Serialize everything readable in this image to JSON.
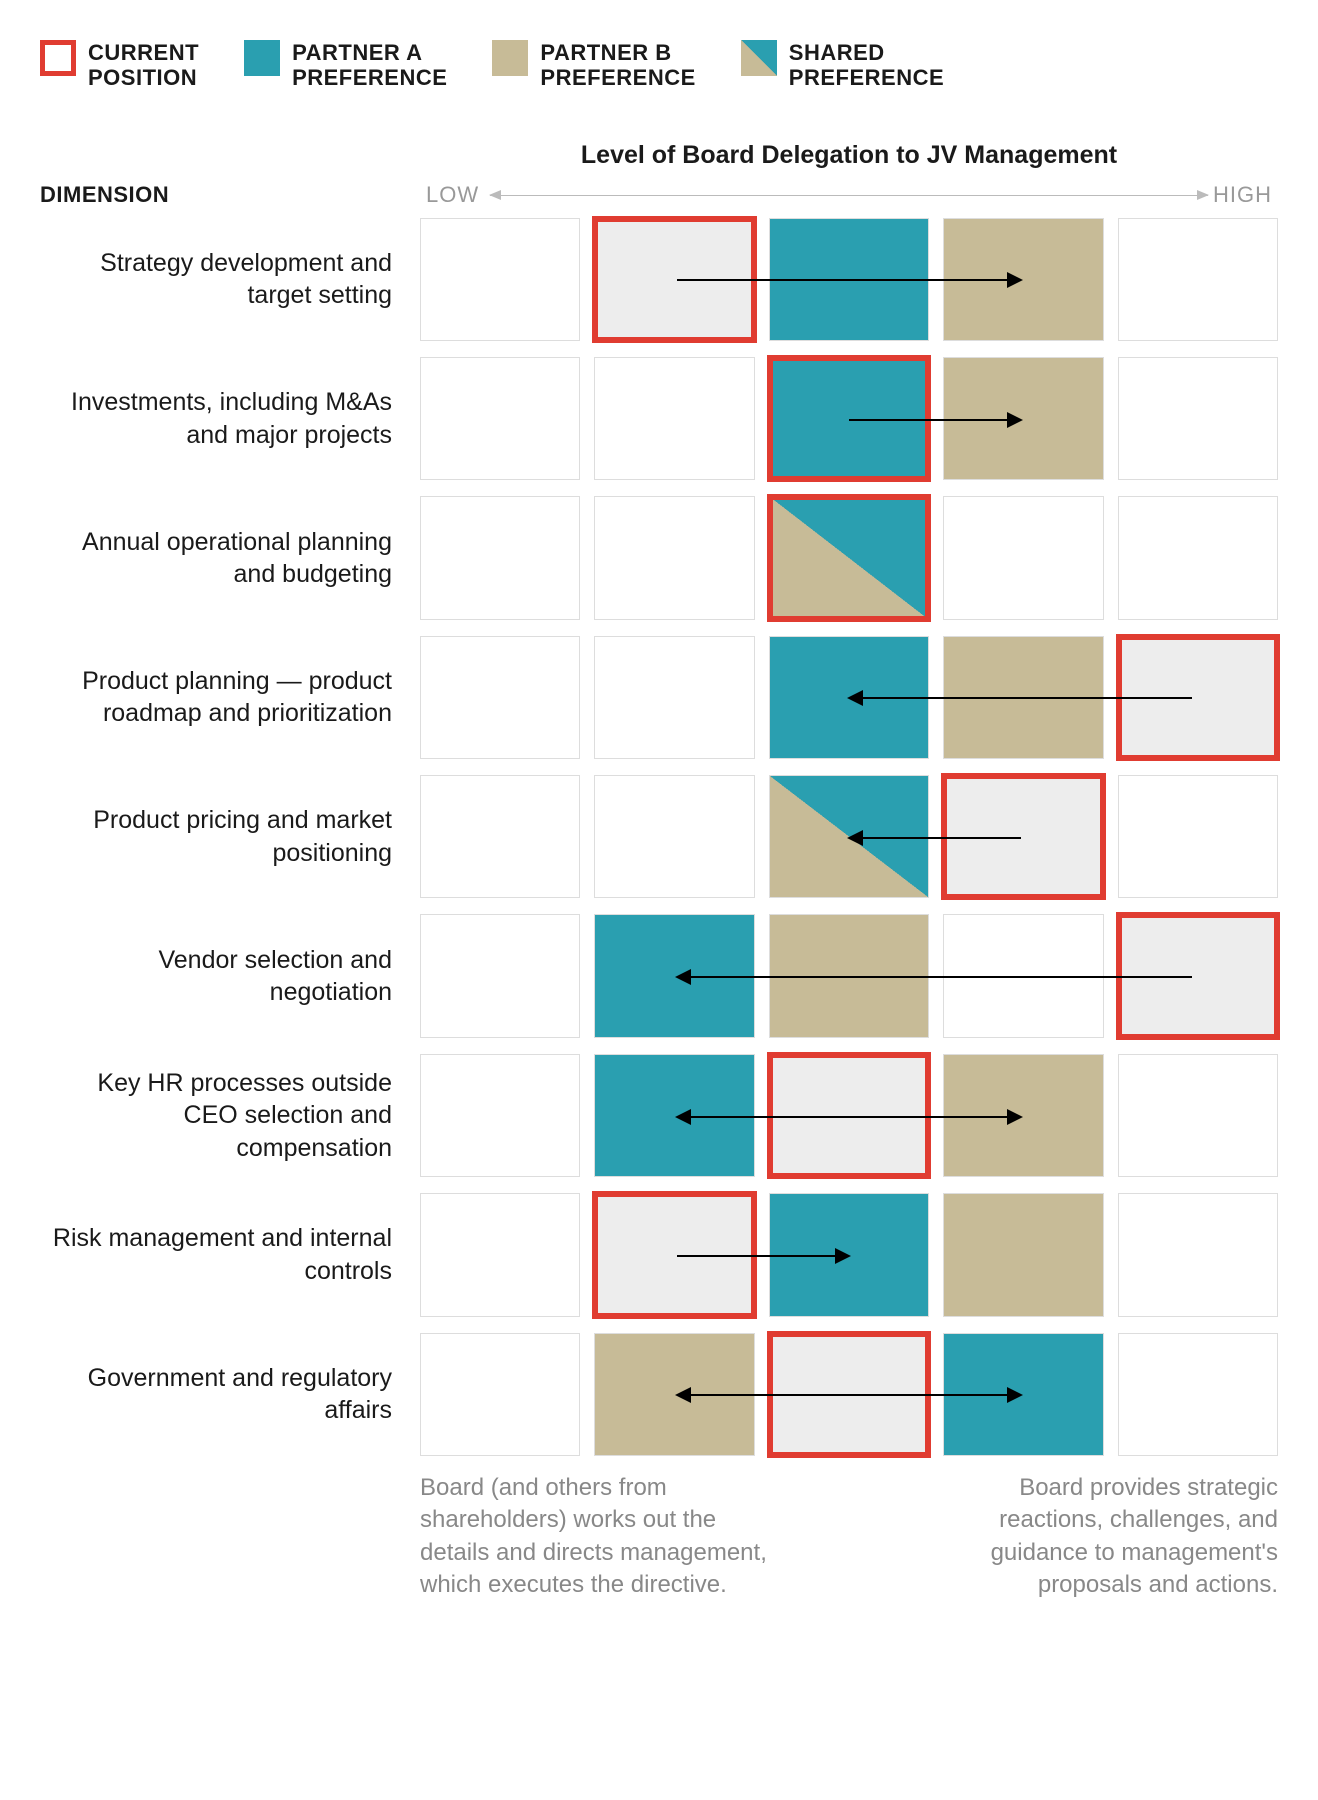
{
  "colors": {
    "current_outline": "#e03c31",
    "partner_a": "#2a9fb0",
    "partner_b": "#c7bb97",
    "empty_cell": "#ffffff",
    "current_fill": "#ededed",
    "grid_border": "#dddddd",
    "text": "#1a1a1a",
    "muted": "#999999",
    "arrow": "#000000"
  },
  "legend": [
    {
      "key": "current",
      "label": "CURRENT\nPOSITION"
    },
    {
      "key": "partner_a",
      "label": "PARTNER A\nPREFERENCE"
    },
    {
      "key": "partner_b",
      "label": "PARTNER B\nPREFERENCE"
    },
    {
      "key": "shared",
      "label": "SHARED\nPREFERENCE"
    }
  ],
  "axis": {
    "title": "Level of Board Delegation to JV Management",
    "low": "LOW",
    "high": "HIGH",
    "dimension_header": "DIMENSION"
  },
  "columns": 5,
  "rows": [
    {
      "label": "Strategy development and target setting",
      "cells": [
        "empty",
        "current",
        "partner_a",
        "partner_b",
        "empty"
      ],
      "arrows": [
        {
          "from": 1,
          "to": 3,
          "heads": [
            "right"
          ]
        }
      ]
    },
    {
      "label": "Investments, including M&As and major projects",
      "cells": [
        "empty",
        "empty",
        "current_partner_a",
        "partner_b",
        "empty"
      ],
      "arrows": [
        {
          "from": 2,
          "to": 3,
          "heads": [
            "right"
          ]
        }
      ]
    },
    {
      "label": "Annual operational planning and budgeting",
      "cells": [
        "empty",
        "empty",
        "current_shared",
        "empty",
        "empty"
      ],
      "arrows": []
    },
    {
      "label": "Product planning — product roadmap and prioritization",
      "cells": [
        "empty",
        "empty",
        "partner_a",
        "partner_b",
        "current"
      ],
      "arrows": [
        {
          "from": 4,
          "to": 2,
          "heads": [
            "left"
          ]
        }
      ]
    },
    {
      "label": "Product pricing and market positioning",
      "cells": [
        "empty",
        "empty",
        "shared",
        "current",
        "empty"
      ],
      "arrows": [
        {
          "from": 3,
          "to": 2,
          "heads": [
            "left"
          ]
        }
      ]
    },
    {
      "label": "Vendor selection and negotiation",
      "cells": [
        "empty",
        "partner_a",
        "partner_b",
        "empty",
        "current"
      ],
      "arrows": [
        {
          "from": 4,
          "to": 1,
          "heads": [
            "left"
          ]
        }
      ]
    },
    {
      "label": "Key HR processes outside CEO selection and compensation",
      "cells": [
        "empty",
        "partner_a",
        "current",
        "partner_b",
        "empty"
      ],
      "arrows": [
        {
          "from": 2,
          "to": 1,
          "heads": [
            "left"
          ]
        },
        {
          "from": 2,
          "to": 3,
          "heads": [
            "right"
          ]
        }
      ]
    },
    {
      "label": "Risk management and internal controls",
      "cells": [
        "empty",
        "current",
        "partner_a",
        "partner_b",
        "empty"
      ],
      "arrows": [
        {
          "from": 1,
          "to": 2,
          "heads": [
            "right"
          ]
        }
      ]
    },
    {
      "label": "Government and regulatory affairs",
      "cells": [
        "empty",
        "partner_b",
        "current",
        "partner_a",
        "empty"
      ],
      "arrows": [
        {
          "from": 2,
          "to": 1,
          "heads": [
            "left"
          ]
        },
        {
          "from": 2,
          "to": 3,
          "heads": [
            "right"
          ]
        }
      ]
    }
  ],
  "footer": {
    "left": "Board (and others from shareholders) works out the details and directs management, which executes the directive.",
    "right": "Board provides strategic reactions, challenges, and guidance to management's proposals and actions."
  }
}
